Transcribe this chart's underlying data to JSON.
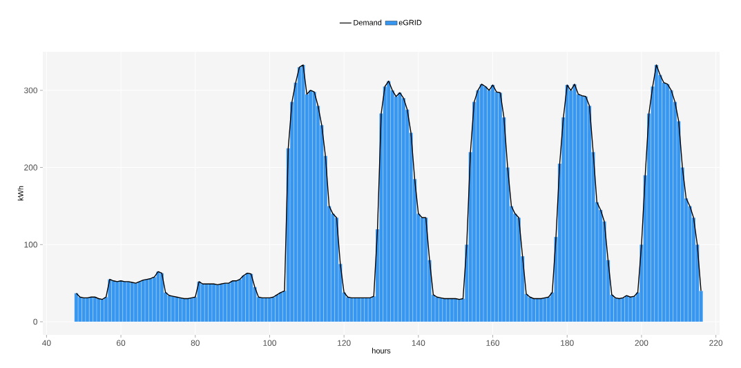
{
  "chart_data": {
    "type": "bar",
    "xlabel": "hours",
    "ylabel": "kWh",
    "x": [
      48,
      49,
      50,
      51,
      52,
      53,
      54,
      55,
      56,
      57,
      58,
      59,
      60,
      61,
      62,
      63,
      64,
      65,
      66,
      67,
      68,
      69,
      70,
      71,
      72,
      73,
      74,
      75,
      76,
      77,
      78,
      79,
      80,
      81,
      82,
      83,
      84,
      85,
      86,
      87,
      88,
      89,
      90,
      91,
      92,
      93,
      94,
      95,
      96,
      97,
      98,
      99,
      100,
      101,
      102,
      103,
      104,
      105,
      106,
      107,
      108,
      109,
      110,
      111,
      112,
      113,
      114,
      115,
      116,
      117,
      118,
      119,
      120,
      121,
      122,
      123,
      124,
      125,
      126,
      127,
      128,
      129,
      130,
      131,
      132,
      133,
      134,
      135,
      136,
      137,
      138,
      139,
      140,
      141,
      142,
      143,
      144,
      145,
      146,
      147,
      148,
      149,
      150,
      151,
      152,
      153,
      154,
      155,
      156,
      157,
      158,
      159,
      160,
      161,
      162,
      163,
      164,
      165,
      166,
      167,
      168,
      169,
      170,
      171,
      172,
      173,
      174,
      175,
      176,
      177,
      178,
      179,
      180,
      181,
      182,
      183,
      184,
      185,
      186,
      187,
      188,
      189,
      190,
      191,
      192,
      193,
      194,
      195,
      196,
      197,
      198,
      199,
      200,
      201,
      202,
      203,
      204,
      205,
      206,
      207,
      208,
      209,
      210,
      211,
      212,
      213,
      214,
      215,
      216
    ],
    "series": [
      {
        "name": "Demand",
        "type": "line",
        "color": "#000000",
        "values": [
          37,
          32,
          31,
          31,
          32,
          32,
          30,
          29,
          32,
          55,
          53,
          52,
          53,
          52,
          52,
          51,
          50,
          52,
          54,
          55,
          56,
          58,
          65,
          63,
          38,
          34,
          33,
          32,
          31,
          30,
          30,
          31,
          32,
          52,
          49,
          49,
          49,
          49,
          48,
          49,
          50,
          50,
          53,
          53,
          55,
          60,
          63,
          62,
          45,
          32,
          31,
          31,
          31,
          32,
          35,
          38,
          40,
          225,
          285,
          310,
          330,
          333,
          295,
          300,
          298,
          280,
          255,
          215,
          150,
          140,
          135,
          75,
          38,
          32,
          31,
          31,
          31,
          31,
          31,
          31,
          33,
          120,
          270,
          305,
          312,
          300,
          292,
          297,
          290,
          275,
          245,
          185,
          140,
          135,
          135,
          80,
          35,
          32,
          31,
          30,
          30,
          30,
          30,
          29,
          30,
          100,
          220,
          285,
          300,
          308,
          305,
          300,
          307,
          298,
          297,
          265,
          200,
          150,
          140,
          135,
          85,
          36,
          32,
          30,
          30,
          30,
          31,
          32,
          38,
          110,
          205,
          265,
          307,
          300,
          308,
          295,
          293,
          292,
          280,
          220,
          155,
          145,
          130,
          80,
          35,
          31,
          30,
          31,
          34,
          32,
          33,
          38,
          100,
          190,
          270,
          305,
          333,
          320,
          310,
          308,
          300,
          285,
          260,
          200,
          160,
          150,
          135,
          100,
          40
        ]
      },
      {
        "name": "eGRID",
        "color": "#3797f0",
        "values": [
          37,
          32,
          31,
          31,
          32,
          32,
          30,
          29,
          32,
          55,
          53,
          52,
          53,
          52,
          52,
          51,
          50,
          52,
          54,
          55,
          56,
          58,
          65,
          63,
          38,
          34,
          33,
          32,
          31,
          30,
          30,
          31,
          32,
          52,
          49,
          49,
          49,
          49,
          48,
          49,
          50,
          50,
          53,
          53,
          55,
          60,
          63,
          62,
          45,
          32,
          31,
          31,
          31,
          32,
          35,
          38,
          40,
          225,
          285,
          310,
          330,
          333,
          295,
          300,
          298,
          280,
          255,
          215,
          150,
          140,
          135,
          75,
          38,
          32,
          31,
          31,
          31,
          31,
          31,
          31,
          33,
          120,
          270,
          305,
          312,
          300,
          292,
          297,
          290,
          275,
          245,
          185,
          140,
          135,
          135,
          80,
          35,
          32,
          31,
          30,
          30,
          30,
          30,
          29,
          30,
          100,
          220,
          285,
          300,
          308,
          305,
          300,
          307,
          298,
          297,
          265,
          200,
          150,
          140,
          135,
          85,
          36,
          32,
          30,
          30,
          30,
          31,
          32,
          38,
          110,
          205,
          265,
          307,
          300,
          308,
          295,
          293,
          292,
          280,
          220,
          155,
          145,
          130,
          80,
          35,
          31,
          30,
          31,
          34,
          32,
          33,
          38,
          100,
          190,
          270,
          305,
          333,
          320,
          310,
          308,
          300,
          285,
          260,
          200,
          160,
          150,
          135,
          100,
          40
        ]
      }
    ],
    "xlim": [
      39,
      221
    ],
    "ylim": [
      -17,
      350
    ],
    "xticks": [
      40,
      60,
      80,
      100,
      120,
      140,
      160,
      180,
      200,
      220
    ],
    "yticks": [
      0,
      100,
      200,
      300
    ],
    "grid": true,
    "legend": "top"
  }
}
